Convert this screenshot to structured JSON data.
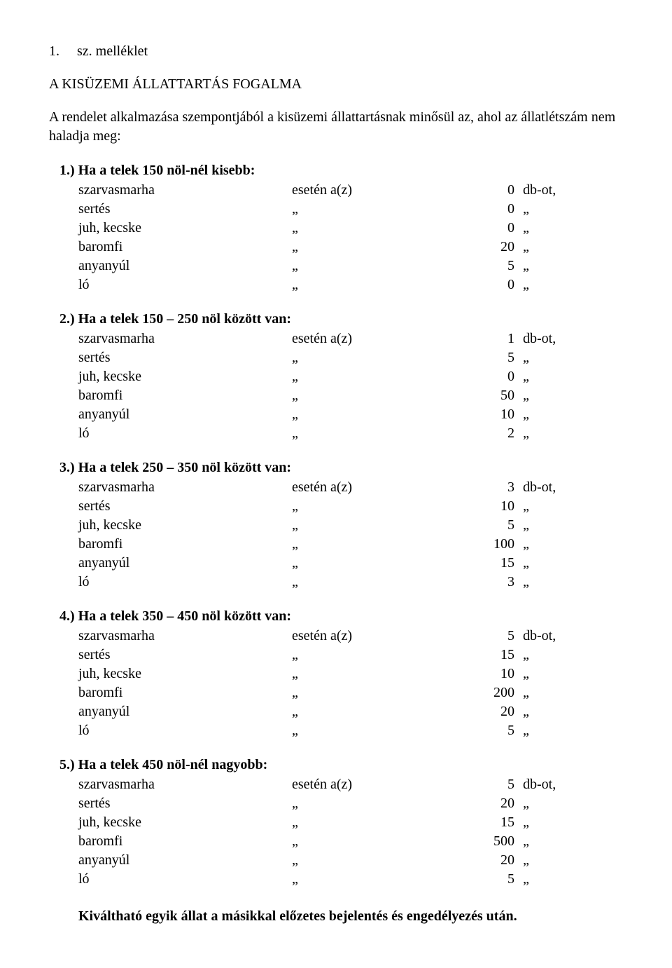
{
  "header": {
    "number": "1.",
    "suffix": "sz. melléklet"
  },
  "title": "A KISÜZEMI ÁLLATTARTÁS FOGALMA",
  "intro": "A rendelet alkalmazása szempontjából a kisüzemi állattartásnak minősül az, ahol az állatlétszám nem haladja meg:",
  "mid_first": "esetén a(z)",
  "mid_repeat": "„",
  "unit_first": "db-ot,",
  "unit_repeat": "„",
  "sections": [
    {
      "header": "1.) Ha a telek 150 nöl-nél kisebb:",
      "rows": [
        {
          "animal": "szarvasmarha",
          "num": "0"
        },
        {
          "animal": "sertés",
          "num": "0"
        },
        {
          "animal": "juh, kecske",
          "num": "0"
        },
        {
          "animal": "baromfi",
          "num": "20"
        },
        {
          "animal": "anyanyúl",
          "num": "5"
        },
        {
          "animal": "ló",
          "num": "0"
        }
      ]
    },
    {
      "header": "2.) Ha a telek 150 – 250 nöl között van:",
      "rows": [
        {
          "animal": "szarvasmarha",
          "num": "1"
        },
        {
          "animal": "sertés",
          "num": "5"
        },
        {
          "animal": "juh, kecske",
          "num": "0"
        },
        {
          "animal": "baromfi",
          "num": "50"
        },
        {
          "animal": "anyanyúl",
          "num": "10"
        },
        {
          "animal": "ló",
          "num": "2"
        }
      ]
    },
    {
      "header": "3.) Ha a telek 250 – 350 nöl között van:",
      "rows": [
        {
          "animal": "szarvasmarha",
          "num": "3"
        },
        {
          "animal": "sertés",
          "num": "10"
        },
        {
          "animal": "juh, kecske",
          "num": "5"
        },
        {
          "animal": "baromfi",
          "num": "100"
        },
        {
          "animal": "anyanyúl",
          "num": "15"
        },
        {
          "animal": "ló",
          "num": "3"
        }
      ]
    },
    {
      "header": "4.) Ha a telek 350 – 450 nöl között van:",
      "rows": [
        {
          "animal": "szarvasmarha",
          "num": "5"
        },
        {
          "animal": "sertés",
          "num": "15"
        },
        {
          "animal": "juh, kecske",
          "num": "10"
        },
        {
          "animal": "baromfi",
          "num": "200"
        },
        {
          "animal": "anyanyúl",
          "num": "20"
        },
        {
          "animal": "ló",
          "num": "5"
        }
      ]
    },
    {
      "header": "5.) Ha a telek 450 nöl-nél nagyobb:",
      "rows": [
        {
          "animal": "szarvasmarha",
          "num": "5"
        },
        {
          "animal": "sertés",
          "num": "20"
        },
        {
          "animal": "juh, kecske",
          "num": "15"
        },
        {
          "animal": "baromfi",
          "num": "500"
        },
        {
          "animal": "anyanyúl",
          "num": "20"
        },
        {
          "animal": "ló",
          "num": "5"
        }
      ]
    }
  ],
  "footer": "Kiváltható egyik állat a másikkal előzetes bejelentés és engedélyezés után."
}
